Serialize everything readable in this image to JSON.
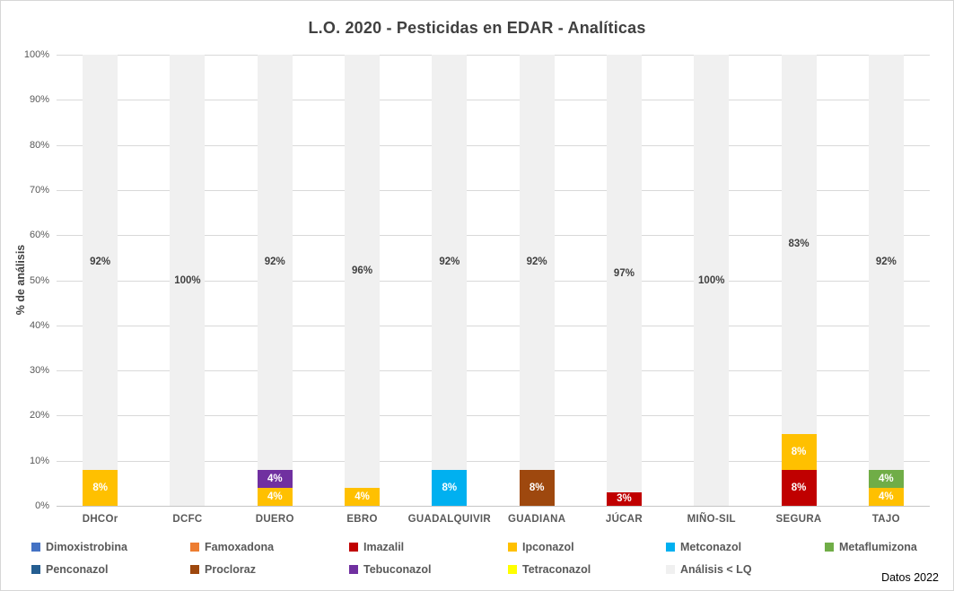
{
  "chart_data": {
    "type": "bar",
    "stacked": true,
    "title": "L.O. 2020 - Pesticidas en EDAR - Analíticas",
    "ylabel": "% de análisis",
    "ylim": [
      0,
      100
    ],
    "ytick_step": 10,
    "ytick_suffix": "%",
    "grid": true,
    "legend_position": "bottom",
    "categories": [
      "DHCOr",
      "DCFC",
      "DUERO",
      "EBRO",
      "GUADALQUIVIR",
      "GUADIANA",
      "JÚCAR",
      "MIÑO-SIL",
      "SEGURA",
      "TAJO"
    ],
    "series": [
      {
        "name": "Dimoxistrobina",
        "color": "#4472C4",
        "values": [
          0,
          0,
          0,
          0,
          0,
          0,
          0,
          0,
          0,
          0
        ]
      },
      {
        "name": "Famoxadona",
        "color": "#ED7D31",
        "values": [
          0,
          0,
          0,
          0,
          0,
          0,
          0,
          0,
          0,
          0
        ]
      },
      {
        "name": "Imazalil",
        "color": "#C00000",
        "values": [
          0,
          0,
          0,
          0,
          0,
          0,
          3,
          0,
          8,
          0
        ]
      },
      {
        "name": "Ipconazol",
        "color": "#FFC000",
        "values": [
          8,
          0,
          4,
          4,
          0,
          0,
          0,
          0,
          8,
          4
        ]
      },
      {
        "name": "Metconazol",
        "color": "#00B0F0",
        "values": [
          0,
          0,
          0,
          0,
          8,
          0,
          0,
          0,
          0,
          0
        ]
      },
      {
        "name": "Metaflumizona",
        "color": "#70AD47",
        "values": [
          0,
          0,
          0,
          0,
          0,
          0,
          0,
          0,
          0,
          4
        ]
      },
      {
        "name": "Penconazol",
        "color": "#255E91",
        "values": [
          0,
          0,
          0,
          0,
          0,
          0,
          0,
          0,
          0,
          0
        ]
      },
      {
        "name": "Procloraz",
        "color": "#9E480E",
        "values": [
          0,
          0,
          0,
          0,
          0,
          8,
          0,
          0,
          0,
          0
        ]
      },
      {
        "name": "Tebuconazol",
        "color": "#7030A0",
        "values": [
          0,
          0,
          4,
          0,
          0,
          0,
          0,
          0,
          0,
          0
        ]
      },
      {
        "name": "Tetraconazol",
        "color": "#FFFF00",
        "values": [
          0,
          0,
          0,
          0,
          0,
          0,
          0,
          0,
          0,
          0
        ]
      },
      {
        "name": "Análisis < LQ",
        "color": "#F0F0F0",
        "values": [
          92,
          100,
          92,
          96,
          92,
          92,
          97,
          100,
          83,
          92
        ],
        "background": true,
        "label_color": "#404040"
      }
    ],
    "data_label_color_on_color": "#FFFFFF",
    "gridline_color": "#D9D9D9"
  },
  "footer": {
    "note": "Datos 2022"
  }
}
